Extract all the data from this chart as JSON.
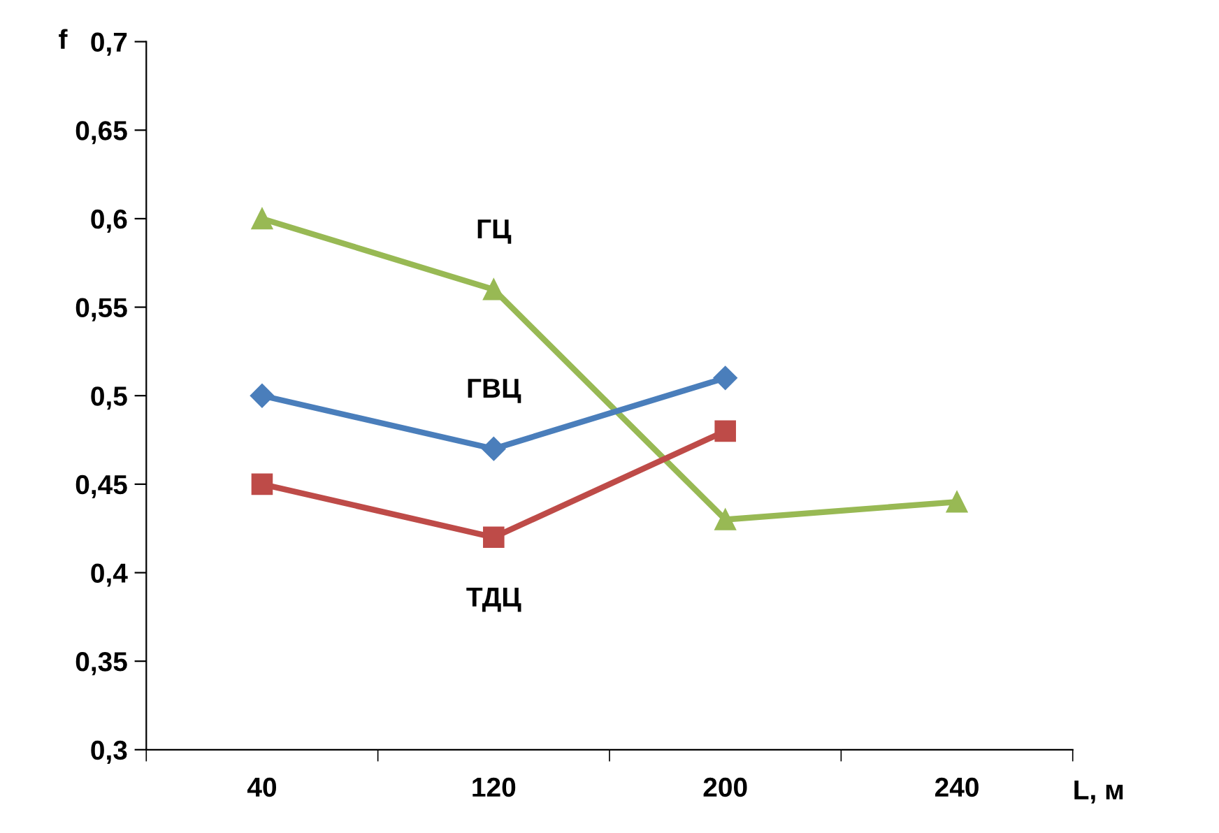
{
  "chart_data": {
    "type": "line",
    "xlabel": "L, м",
    "ylabel": "f",
    "categories": [
      "40",
      "120",
      "200",
      "240"
    ],
    "series": [
      {
        "name": "ГЦ",
        "color": "#98b954",
        "marker": "triangle",
        "values": [
          0.6,
          0.56,
          0.43,
          0.44
        ]
      },
      {
        "name": "ГВЦ",
        "color": "#4a7ebb",
        "marker": "diamond",
        "values": [
          0.5,
          0.47,
          0.51,
          null
        ]
      },
      {
        "name": "ТДЦ",
        "color": "#be4b48",
        "marker": "square",
        "values": [
          0.45,
          0.42,
          0.48,
          null
        ]
      }
    ],
    "ylim": [
      0.3,
      0.7
    ],
    "yticks": [
      {
        "value": 0.3,
        "label": "0,3"
      },
      {
        "value": 0.35,
        "label": "0,35"
      },
      {
        "value": 0.4,
        "label": "0,4"
      },
      {
        "value": 0.45,
        "label": "0,45"
      },
      {
        "value": 0.5,
        "label": "0,5"
      },
      {
        "value": 0.55,
        "label": "0,55"
      },
      {
        "value": 0.6,
        "label": "0,6"
      },
      {
        "value": 0.65,
        "label": "0,65"
      },
      {
        "value": 0.7,
        "label": "0,7"
      }
    ],
    "grid": false,
    "legend": false,
    "line_style": "solid"
  }
}
